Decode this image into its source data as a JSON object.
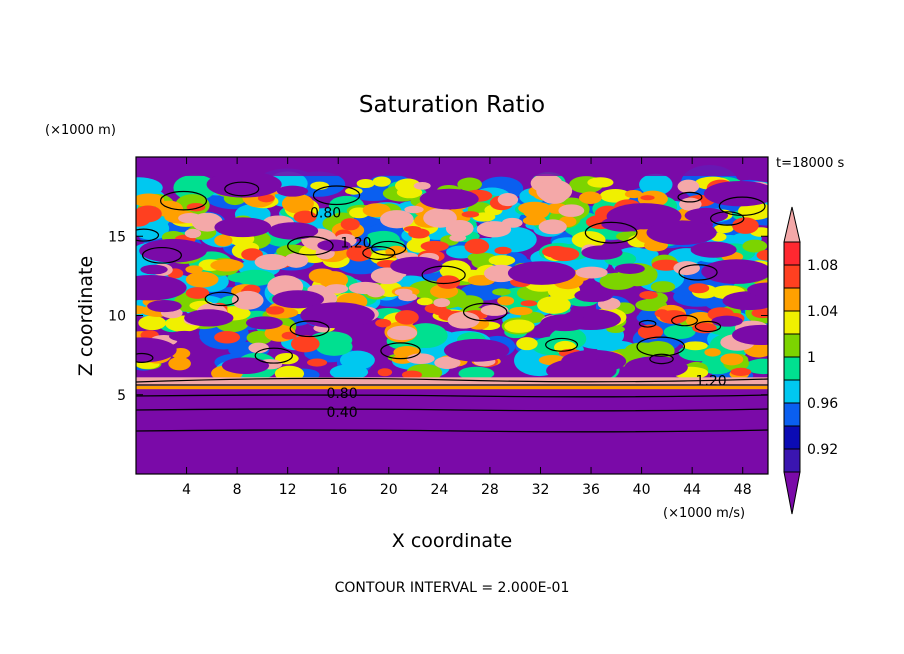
{
  "chart_data": {
    "type": "heatmap",
    "title": "Saturation Ratio",
    "xlabel": "X coordinate",
    "ylabel": "Z coordinate",
    "x_unit": "(×1000 m/s)",
    "y_unit": "(×1000 m)",
    "time_label": "t=18000 s",
    "footer": "CONTOUR INTERVAL = 2.000E-01",
    "xlim": [
      0,
      50
    ],
    "ylim": [
      0,
      20
    ],
    "x_ticks": [
      "4",
      "8",
      "12",
      "16",
      "20",
      "24",
      "28",
      "32",
      "36",
      "40",
      "44",
      "48"
    ],
    "y_ticks": [
      "5",
      "10",
      "15"
    ],
    "contour_labels": [
      {
        "text": "0.80",
        "x": 15.0,
        "z": 16.5
      },
      {
        "text": "1.20",
        "x": 17.4,
        "z": 14.6
      },
      {
        "text": "0.80",
        "x": 16.3,
        "z": 5.1
      },
      {
        "text": "0.40",
        "x": 16.3,
        "z": 3.9
      },
      {
        "text": "1.20",
        "x": 45.5,
        "z": 5.9
      }
    ],
    "colorbar": {
      "levels": [
        0.9,
        0.92,
        0.94,
        0.96,
        0.98,
        1.0,
        1.02,
        1.04,
        1.06,
        1.08,
        1.1
      ],
      "tick_labels": [
        "0.92",
        "0.96",
        "1",
        "1.04",
        "1.08"
      ],
      "colors": [
        "#7a0aa8",
        "#3a15b0",
        "#0b0bb4",
        "#0a5ff0",
        "#00c8f0",
        "#00e090",
        "#7cd400",
        "#f0f000",
        "#ffa000",
        "#ff4020",
        "#ff2830",
        "#f4a8a8"
      ]
    },
    "field": {
      "layers": [
        {
          "z": [
            0.0,
            5.4
          ],
          "value": 0.6
        },
        {
          "z": [
            5.4,
            20.0
          ],
          "value": "turbulent mixed 0.8–1.2"
        }
      ]
    }
  }
}
